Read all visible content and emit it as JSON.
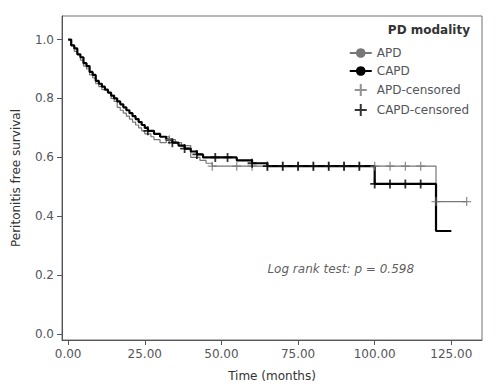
{
  "chart_data": {
    "type": "line",
    "xlabel": "Time (months)",
    "ylabel": "Peritonitis free survival",
    "legend_title": "PD modality",
    "legend": "upper right",
    "grid": false,
    "annotations": [
      {
        "text": "Log rank test: p = 0.598",
        "x": 65,
        "y": 0.22
      }
    ],
    "xlim": [
      -2,
      135
    ],
    "ylim": [
      -0.02,
      1.08
    ],
    "xticks": [
      {
        "value": 0,
        "label": "0.00"
      },
      {
        "value": 25,
        "label": "25.00"
      },
      {
        "value": 50,
        "label": "50.00"
      },
      {
        "value": 75,
        "label": "75.00"
      },
      {
        "value": 100,
        "label": "100.00"
      },
      {
        "value": 125,
        "label": "125.00"
      }
    ],
    "yticks": [
      {
        "value": 0,
        "label": "0.0"
      },
      0.2,
      0.4,
      0.6,
      0.8,
      {
        "value": 1,
        "label": "1.0"
      }
    ],
    "series": [
      {
        "name": "APD",
        "type": "step",
        "color": "#777777",
        "x": [
          0,
          1,
          2,
          3,
          4,
          5,
          6,
          7,
          8,
          9,
          10,
          11,
          13,
          14,
          15,
          16,
          17,
          18,
          19,
          20,
          21,
          22,
          23,
          24,
          25,
          27,
          28,
          30,
          32,
          33,
          35,
          37,
          40,
          43,
          45,
          47,
          50,
          55,
          60,
          65,
          70,
          75,
          80,
          85,
          90,
          95,
          100,
          105,
          110,
          115,
          120,
          125,
          130
        ],
        "values": [
          1.0,
          0.98,
          0.96,
          0.95,
          0.93,
          0.91,
          0.9,
          0.88,
          0.87,
          0.85,
          0.84,
          0.83,
          0.82,
          0.8,
          0.79,
          0.77,
          0.76,
          0.75,
          0.74,
          0.73,
          0.72,
          0.71,
          0.7,
          0.69,
          0.68,
          0.67,
          0.66,
          0.65,
          0.67,
          0.66,
          0.65,
          0.64,
          0.6,
          0.59,
          0.58,
          0.57,
          0.57,
          0.57,
          0.57,
          0.57,
          0.57,
          0.57,
          0.57,
          0.57,
          0.57,
          0.57,
          0.57,
          0.57,
          0.57,
          0.57,
          0.45,
          0.45,
          0.45
        ]
      },
      {
        "name": "CAPD",
        "type": "step",
        "color": "#000000",
        "x": [
          0,
          1,
          2,
          3,
          4,
          5,
          6,
          7,
          8,
          9,
          10,
          11,
          12,
          13,
          14,
          15,
          16,
          17,
          18,
          19,
          20,
          21,
          22,
          23,
          24,
          25,
          26,
          28,
          30,
          32,
          34,
          36,
          38,
          40,
          42,
          44,
          46,
          48,
          50,
          52,
          55,
          60,
          65,
          70,
          75,
          80,
          85,
          90,
          95,
          100,
          105,
          110,
          115,
          120,
          122,
          125
        ],
        "values": [
          1.0,
          0.98,
          0.97,
          0.95,
          0.94,
          0.92,
          0.91,
          0.89,
          0.88,
          0.86,
          0.85,
          0.84,
          0.83,
          0.82,
          0.81,
          0.8,
          0.79,
          0.78,
          0.77,
          0.76,
          0.75,
          0.74,
          0.73,
          0.72,
          0.71,
          0.7,
          0.69,
          0.68,
          0.67,
          0.66,
          0.65,
          0.64,
          0.63,
          0.62,
          0.61,
          0.6,
          0.6,
          0.6,
          0.6,
          0.6,
          0.59,
          0.58,
          0.57,
          0.57,
          0.57,
          0.57,
          0.57,
          0.57,
          0.57,
          0.51,
          0.51,
          0.51,
          0.51,
          0.35,
          0.35,
          0.35
        ]
      },
      {
        "name": "APD-censored",
        "type": "scatter",
        "marker": "+",
        "color": "#777777",
        "x": [
          33,
          47,
          55,
          60,
          65,
          70,
          75,
          80,
          85,
          90,
          95,
          100,
          105,
          110,
          115,
          120,
          130
        ],
        "values": [
          0.66,
          0.57,
          0.57,
          0.57,
          0.57,
          0.57,
          0.57,
          0.57,
          0.57,
          0.57,
          0.57,
          0.57,
          0.57,
          0.57,
          0.57,
          0.45,
          0.45
        ]
      },
      {
        "name": "CAPD-censored",
        "type": "scatter",
        "marker": "+",
        "color": "#000000",
        "x": [
          26,
          34,
          38,
          42,
          48,
          52,
          60,
          65,
          70,
          75,
          80,
          85,
          90,
          95,
          100,
          105,
          110,
          115
        ],
        "values": [
          0.69,
          0.65,
          0.63,
          0.61,
          0.6,
          0.6,
          0.58,
          0.57,
          0.57,
          0.57,
          0.57,
          0.57,
          0.57,
          0.57,
          0.51,
          0.51,
          0.51,
          0.51
        ]
      }
    ]
  }
}
